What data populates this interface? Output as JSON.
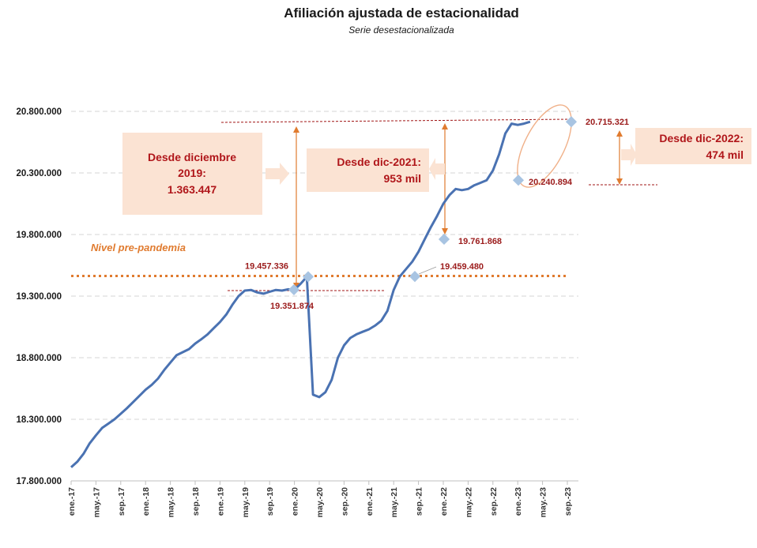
{
  "chart_data": {
    "type": "line",
    "title": "Afiliación ajustada de estacionalidad",
    "subtitle": "Serie desestacionalizada",
    "ylim": [
      17800000,
      20800000
    ],
    "y_ticks": [
      "17.800.000",
      "18.300.000",
      "18.800.000",
      "19.300.000",
      "19.800.000",
      "20.300.000",
      "20.800.000"
    ],
    "x_ticks": [
      "ene.-17",
      "may.-17",
      "sep.-17",
      "ene.-18",
      "may.-18",
      "sep.-18",
      "ene.-19",
      "may.-19",
      "sep.-19",
      "ene.-20",
      "may.-20",
      "sep.-20",
      "ene.-21",
      "may.-21",
      "sep.-21",
      "ene.-22",
      "may.-22",
      "sep.-22",
      "ene.-23",
      "may.-23",
      "sep.-23"
    ],
    "grid": true,
    "line_color": "#4a72b2",
    "series": [
      {
        "values": [
          17910000,
          17955000,
          18020000,
          18105000,
          18170000,
          18230000,
          18265000,
          18300000,
          18345000,
          18390000,
          18440000,
          18490000,
          18540000,
          18580000,
          18630000,
          18700000,
          18760000,
          18820000,
          18845000,
          18870000,
          18915000,
          18950000,
          18990000,
          19040000,
          19090000,
          19150000,
          19230000,
          19300000,
          19345000,
          19350000,
          19330000,
          19320000,
          19335000,
          19350000,
          19345000,
          19355000,
          19351874,
          19400000,
          19457336,
          18500000,
          18480000,
          18520000,
          18620000,
          18800000,
          18900000,
          18960000,
          18990000,
          19010000,
          19030000,
          19060000,
          19100000,
          19180000,
          19350000,
          19459480,
          19520000,
          19580000,
          19660000,
          19761868,
          19860000,
          19950000,
          20050000,
          20120000,
          20170000,
          20160000,
          20170000,
          20200000,
          20220000,
          20240894,
          20320000,
          20450000,
          20620000,
          20700000,
          20690000,
          20700000,
          20715321
        ]
      }
    ],
    "points": [
      {
        "label": "19.351.874",
        "value": 19351874
      },
      {
        "label": "19.457.336",
        "value": 19457336
      },
      {
        "label": "19.459.480",
        "value": 19459480
      },
      {
        "label": "19.761.868",
        "value": 19761868
      },
      {
        "label": "20.240.894",
        "value": 20240894
      },
      {
        "label": "20.715.321",
        "value": 20715321
      }
    ],
    "pre_pandemic_label": "Nivel pre-pandemia",
    "annotations": [
      {
        "lines": [
          "Desde diciembre",
          "2019:",
          "1.363.447"
        ]
      },
      {
        "lines": [
          "Desde dic-2021:",
          "953 mil"
        ]
      },
      {
        "lines": [
          "Desde dic-2022:",
          "474 mil"
        ]
      }
    ],
    "colors": {
      "box_fill": "#fbe3d3",
      "box_text": "#b0161a",
      "point_label": "#9b1b1b",
      "marker": "#a8c4e2",
      "orange": "#e07b2f",
      "dashed_red": "#a01515"
    }
  }
}
